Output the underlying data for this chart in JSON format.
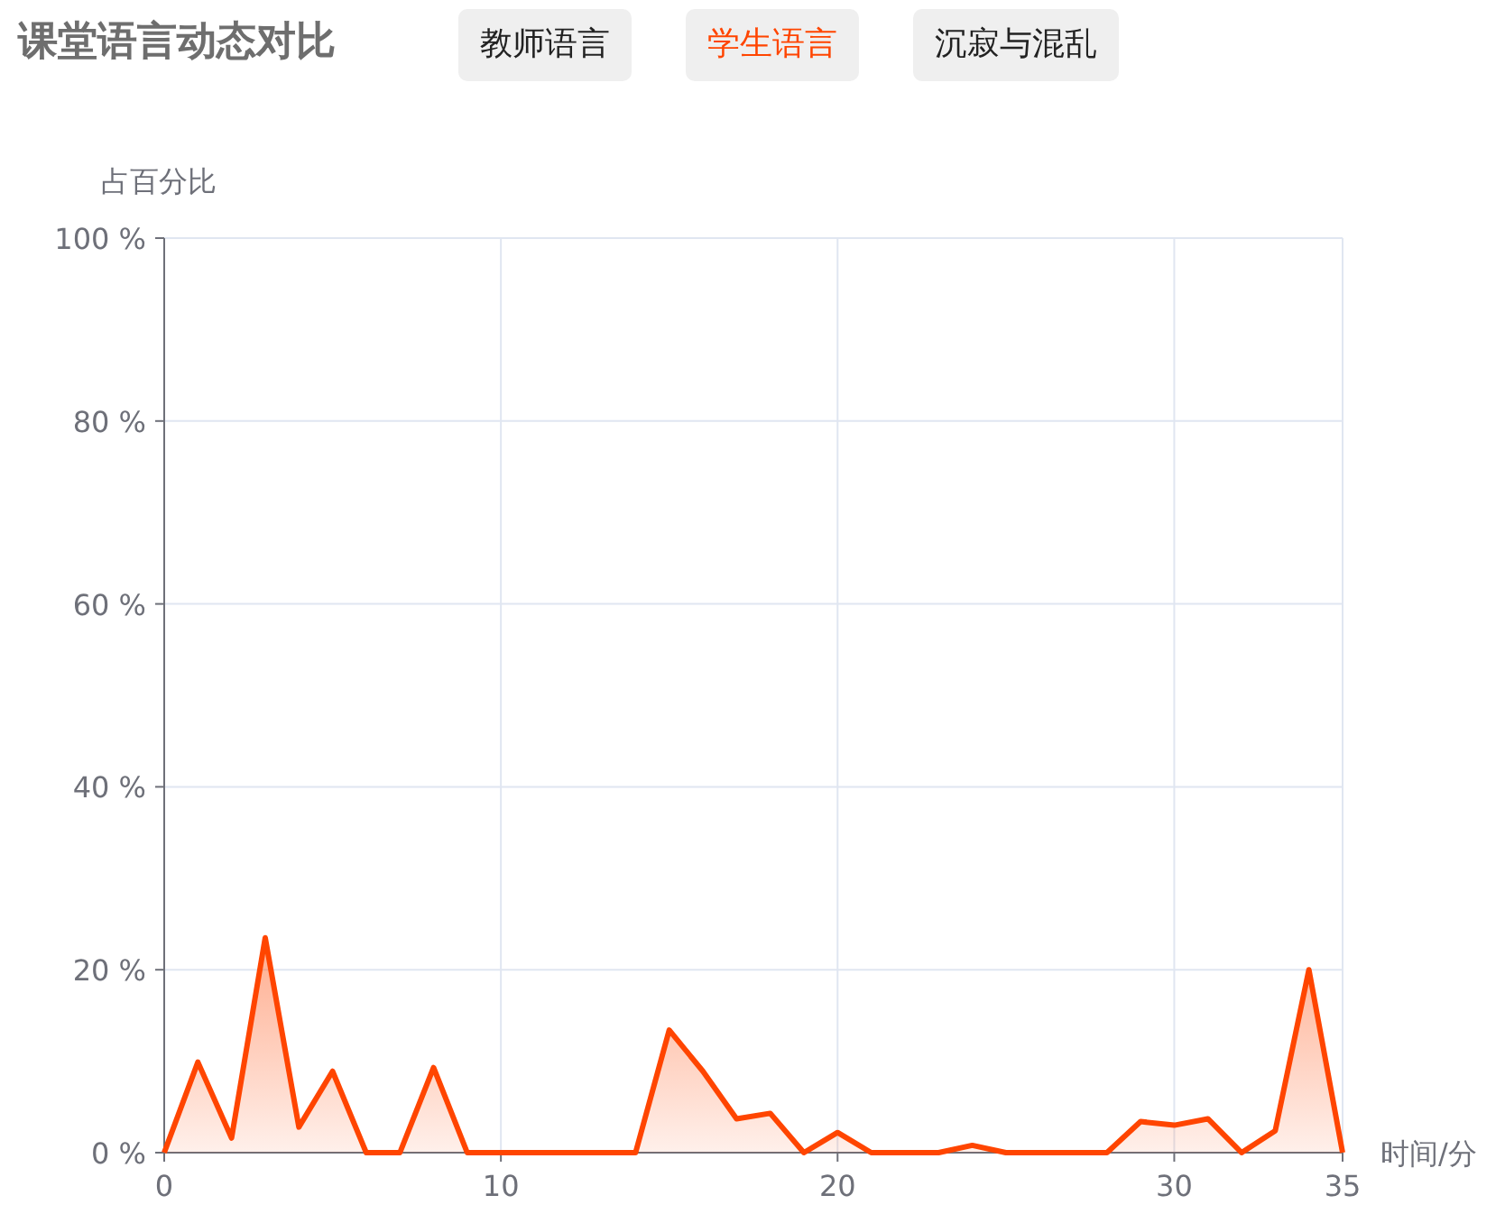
{
  "chart_data": {
    "type": "area",
    "title": "课堂语言动态对比",
    "xlabel": "时间/分",
    "ylabel": "占百分比",
    "x": [
      0,
      1,
      2,
      3,
      4,
      5,
      6,
      7,
      8,
      9,
      10,
      11,
      12,
      13,
      14,
      15,
      16,
      17,
      18,
      19,
      20,
      21,
      22,
      23,
      24,
      25,
      26,
      27,
      28,
      29,
      30,
      31,
      32,
      33,
      34,
      35
    ],
    "series": [
      {
        "name": "学生语言",
        "color": "#ff4500",
        "values": [
          0,
          9.9,
          1.6,
          23.5,
          2.8,
          8.9,
          0,
          0,
          9.3,
          0,
          0,
          0,
          0,
          0,
          0,
          13.4,
          8.9,
          3.7,
          4.3,
          0,
          2.2,
          0,
          0,
          0,
          0.8,
          0,
          0,
          0,
          0,
          3.4,
          3.0,
          3.7,
          0,
          2.4,
          20,
          0
        ]
      }
    ],
    "annotations": [
      "教师语言",
      "沉寂与混乱"
    ],
    "xlim": [
      0,
      35
    ],
    "xticks": [
      0,
      10,
      20,
      30,
      35
    ],
    "ylim": [
      0,
      100
    ],
    "yticks": [
      {
        "value": 0,
        "label": "0 %"
      },
      {
        "value": 20,
        "label": "20 %"
      },
      {
        "value": 40,
        "label": "40 %"
      },
      {
        "value": 60,
        "label": "60 %"
      },
      {
        "value": 80,
        "label": "80 %"
      },
      {
        "value": 100,
        "label": "100 %"
      }
    ],
    "grid": true,
    "legend": "top"
  }
}
